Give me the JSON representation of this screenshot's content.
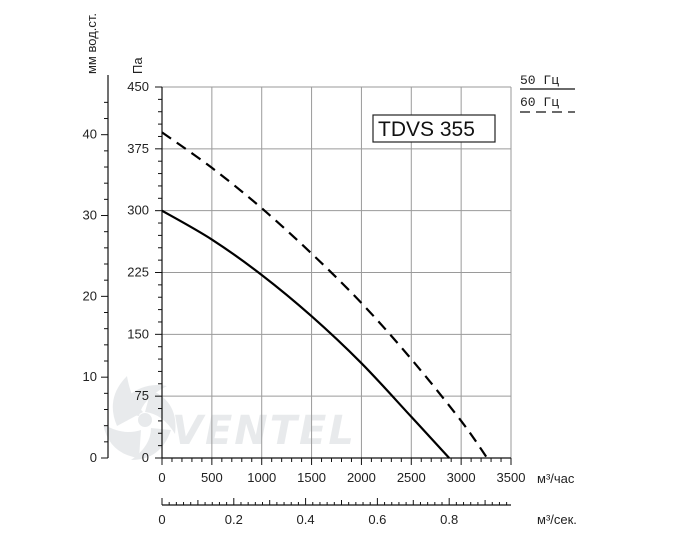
{
  "chart_data": {
    "type": "line",
    "title": "TDVS 355",
    "x_axis": {
      "label": "м³/час",
      "range": [
        0,
        3500
      ],
      "ticks": [
        "0",
        "500",
        "1000",
        "1500",
        "2000",
        "2500",
        "3000",
        "3500"
      ]
    },
    "x2_axis": {
      "label": "м³/сек.",
      "range": [
        0,
        0.9722
      ],
      "ticks": [
        "0",
        "0.2",
        "0.4",
        "0.6",
        "0.8"
      ]
    },
    "y_axis": {
      "label": "Па",
      "range": [
        0,
        450
      ],
      "ticks": [
        "0",
        "75",
        "150",
        "225",
        "300",
        "375",
        "450"
      ]
    },
    "y2_axis": {
      "label": "мм вод.ст.",
      "range": [
        0,
        45.9
      ],
      "ticks": [
        "0",
        "10",
        "20",
        "30",
        "40"
      ]
    },
    "grid": true,
    "legend_position": "top-right",
    "series": [
      {
        "name": "50 Гц",
        "style": "solid",
        "color": "#000000",
        "x": [
          0,
          500,
          1000,
          1500,
          2000,
          2500,
          2880
        ],
        "y": [
          300,
          265,
          222,
          172,
          115,
          50,
          0
        ]
      },
      {
        "name": "60 Гц",
        "style": "dashed",
        "color": "#000000",
        "x": [
          0,
          500,
          1000,
          1500,
          2000,
          2500,
          3000,
          3260
        ],
        "y": [
          395,
          352,
          303,
          248,
          188,
          120,
          45,
          0
        ]
      }
    ],
    "watermark": "VENTEL"
  }
}
